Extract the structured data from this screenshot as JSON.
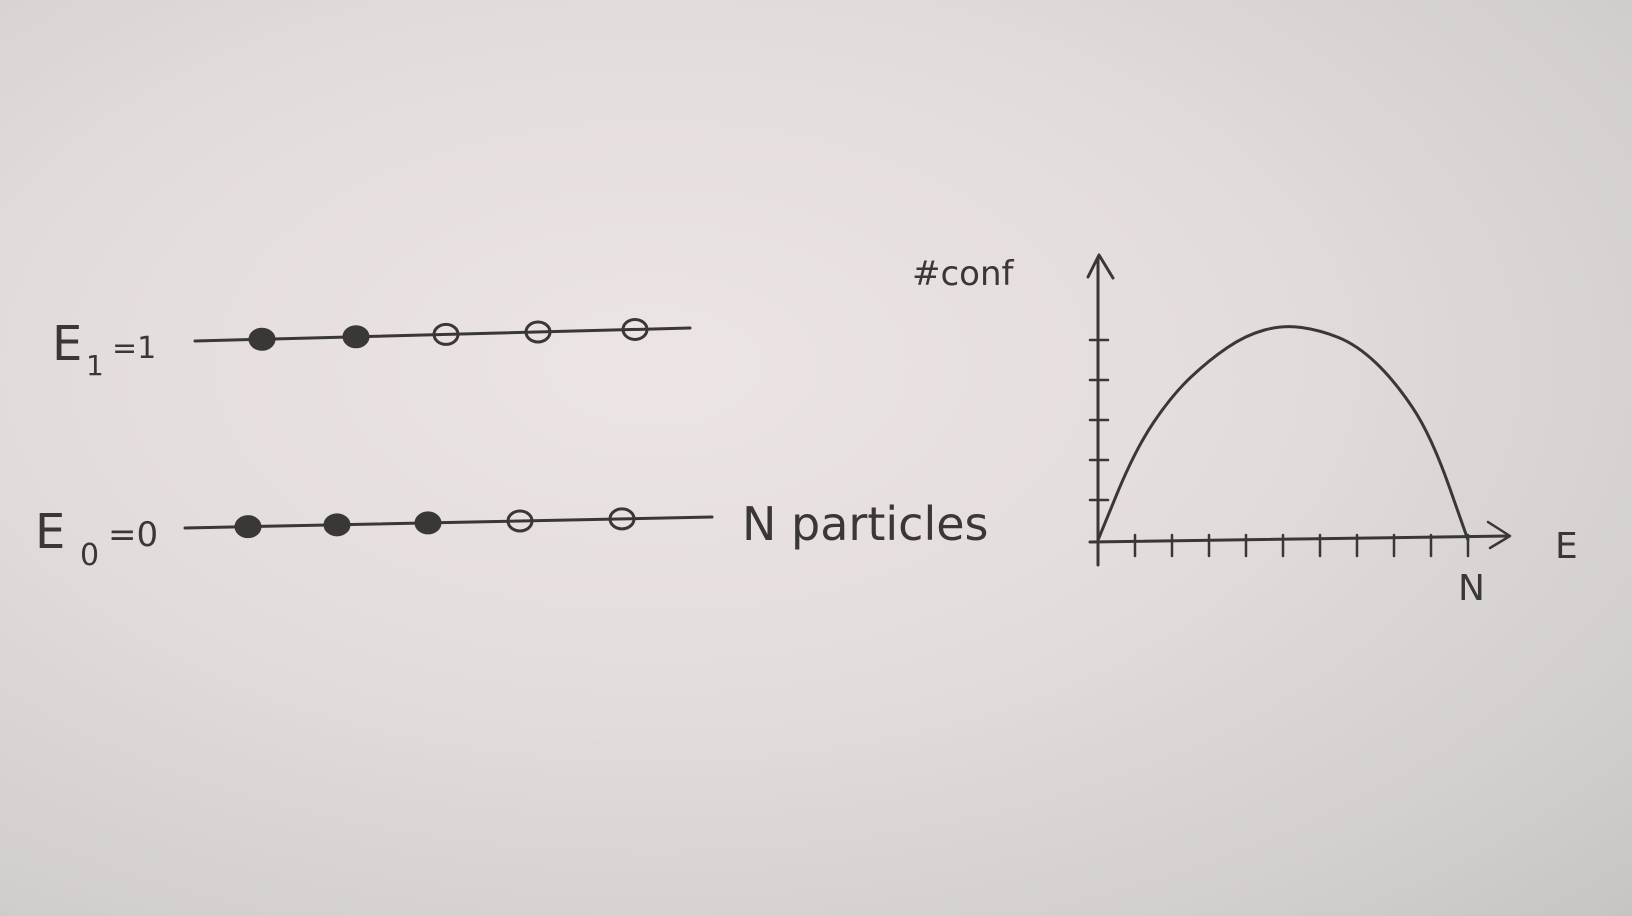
{
  "levels": [
    {
      "name": "E",
      "sub": "1",
      "value": "=1",
      "occupancy": [
        1,
        1,
        0,
        0,
        0
      ]
    },
    {
      "name": "E",
      "sub": "0",
      "value": "=0",
      "occupancy": [
        1,
        1,
        1,
        0,
        0
      ]
    }
  ],
  "particles_label": "N particles",
  "chart_data": {
    "type": "line",
    "ylabel": "#conf",
    "xlabel": "E",
    "x_end_label": "N",
    "series": [
      {
        "x": [
          0,
          1,
          2,
          3,
          4,
          5,
          6,
          7,
          8,
          9,
          10
        ],
        "y": [
          0,
          1.8,
          2.9,
          3.6,
          4.1,
          4.3,
          4.2,
          3.9,
          3.2,
          2.1,
          0
        ]
      }
    ],
    "xlim": [
      0,
      10
    ],
    "ylim": [
      0,
      5
    ],
    "grid": false
  },
  "colors": {
    "ink": "#3a3836",
    "paper": "#e4dedc"
  }
}
